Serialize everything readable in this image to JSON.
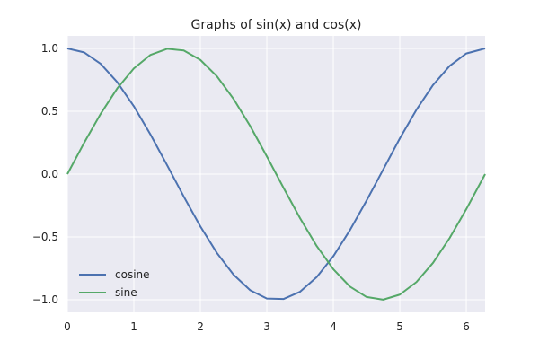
{
  "chart_data": {
    "type": "line",
    "title": "Graphs of sin(x) and cos(x)",
    "xlabel": "",
    "ylabel": "",
    "xlim": [
      0,
      6.283
    ],
    "ylim": [
      -1.1,
      1.1
    ],
    "x_ticks": [
      0,
      1,
      2,
      3,
      4,
      5,
      6
    ],
    "x_tick_labels": [
      "0",
      "1",
      "2",
      "3",
      "4",
      "5",
      "6"
    ],
    "y_ticks": [
      1.0,
      0.5,
      0.0,
      -0.5,
      -1.0
    ],
    "y_tick_labels": [
      "1.0",
      "0.5",
      "0.0",
      "−0.5",
      "−1.0"
    ],
    "grid": true,
    "legend_position": "lower-left",
    "x": [
      0,
      0.25,
      0.5,
      0.75,
      1,
      1.25,
      1.5,
      1.75,
      2,
      2.25,
      2.5,
      2.75,
      3,
      3.25,
      3.5,
      3.75,
      4,
      4.25,
      4.5,
      4.75,
      5,
      5.25,
      5.5,
      5.75,
      6,
      6.283
    ],
    "series": [
      {
        "name": "cosine",
        "color": "#4c72b0",
        "values": [
          1.0,
          0.969,
          0.878,
          0.732,
          0.54,
          0.315,
          0.071,
          -0.178,
          -0.416,
          -0.628,
          -0.801,
          -0.924,
          -0.99,
          -0.994,
          -0.936,
          -0.82,
          -0.654,
          -0.446,
          -0.211,
          0.036,
          0.284,
          0.512,
          0.709,
          0.861,
          0.96,
          1.0
        ]
      },
      {
        "name": "sine",
        "color": "#55a868",
        "values": [
          0.0,
          0.247,
          0.479,
          0.682,
          0.841,
          0.949,
          0.997,
          0.984,
          0.909,
          0.778,
          0.598,
          0.382,
          0.141,
          -0.108,
          -0.351,
          -0.572,
          -0.757,
          -0.895,
          -0.978,
          -0.999,
          -0.959,
          -0.859,
          -0.706,
          -0.508,
          -0.279,
          0.0
        ]
      }
    ]
  },
  "colors": {
    "plot_background": "#eaeaf2",
    "grid": "#ffffff"
  }
}
